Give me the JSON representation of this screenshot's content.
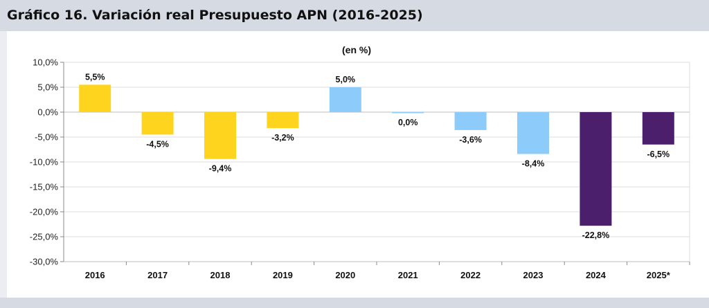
{
  "header": {
    "title": "Gráfico 16. Variación real Presupuesto APN (2016-2025)"
  },
  "chart_data": {
    "type": "bar",
    "title": "Gráfico 16. Variación real Presupuesto APN (2016-2025)",
    "subtitle": "(en %)",
    "xlabel": "",
    "ylabel": "",
    "ylim": [
      -30,
      10
    ],
    "ytick_values": [
      10,
      5,
      0,
      -5,
      -10,
      -15,
      -20,
      -25,
      -30
    ],
    "ytick_labels": [
      "10,0%",
      "5,0%",
      "0,0%",
      "-5,0%",
      "-10,0%",
      "-15,0%",
      "-20,0%",
      "-25,0%",
      "-30,0%"
    ],
    "grid": true,
    "legend": "none",
    "categories": [
      "2016",
      "2017",
      "2018",
      "2019",
      "2020",
      "2021",
      "2022",
      "2023",
      "2024",
      "2025*"
    ],
    "values": [
      5.5,
      -4.5,
      -9.4,
      -3.2,
      5.0,
      0.0,
      -3.6,
      -8.4,
      -22.8,
      -6.5
    ],
    "value_labels": [
      "5,5%",
      "-4,5%",
      "-9,4%",
      "-3,2%",
      "5,0%",
      "0,0%",
      "-3,6%",
      "-8,4%",
      "-22,8%",
      "-6,5%"
    ],
    "bar_colors": [
      "#ffd41f",
      "#ffd41f",
      "#ffd41f",
      "#ffd41f",
      "#8ccbfa",
      "#8ccbfa",
      "#8ccbfa",
      "#8ccbfa",
      "#4b1f6b",
      "#4b1f6b"
    ]
  }
}
